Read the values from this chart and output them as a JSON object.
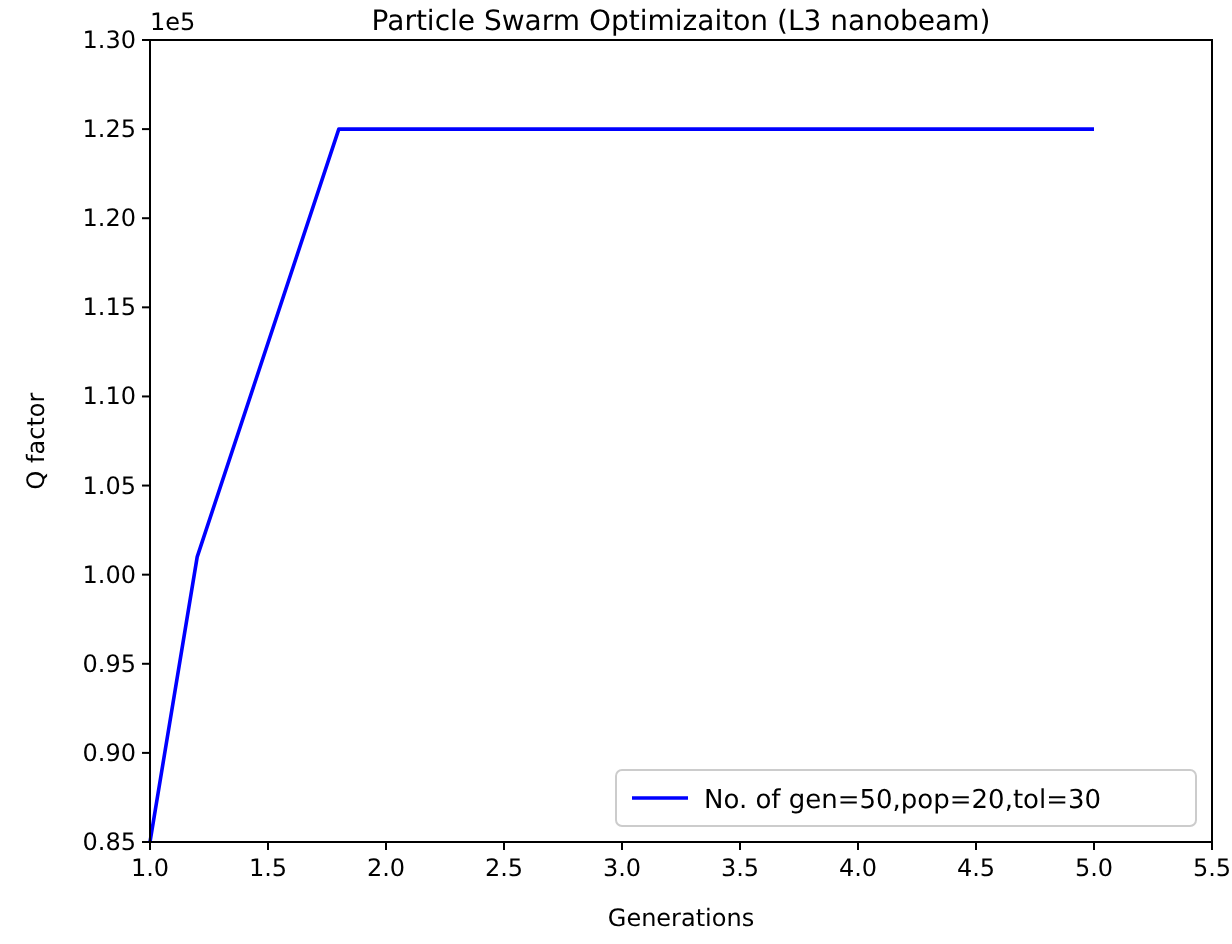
{
  "chart_data": {
    "type": "line",
    "title": "Particle Swarm Optimizaiton (L3 nanobeam)",
    "xlabel": "Generations",
    "ylabel": "Q factor",
    "annotations": [
      "1e5"
    ],
    "x": [
      1.0,
      1.2,
      1.8,
      5.0
    ],
    "series": [
      {
        "name": "No. of gen=50,pop=20,tol=30",
        "color": "#0000ff",
        "values": [
          0.85,
          1.01,
          1.25,
          1.25
        ]
      }
    ],
    "xlim": [
      1.0,
      5.5
    ],
    "xticks": [
      {
        "value": 1.0,
        "label": "1.0"
      },
      {
        "value": 1.5,
        "label": "1.5"
      },
      {
        "value": 2.0,
        "label": "2.0"
      },
      {
        "value": 2.5,
        "label": "2.5"
      },
      {
        "value": 3.0,
        "label": "3.0"
      },
      {
        "value": 3.5,
        "label": "3.5"
      },
      {
        "value": 4.0,
        "label": "4.0"
      },
      {
        "value": 4.5,
        "label": "4.5"
      },
      {
        "value": 5.0,
        "label": "5.0"
      },
      {
        "value": 5.5,
        "label": "5.5"
      }
    ],
    "ylim": [
      0.85,
      1.3
    ],
    "yticks": [
      {
        "value": 0.85,
        "label": "0.85"
      },
      {
        "value": 0.9,
        "label": "0.90"
      },
      {
        "value": 0.95,
        "label": "0.95"
      },
      {
        "value": 1.0,
        "label": "1.00"
      },
      {
        "value": 1.05,
        "label": "1.05"
      },
      {
        "value": 1.1,
        "label": "1.10"
      },
      {
        "value": 1.15,
        "label": "1.15"
      },
      {
        "value": 1.2,
        "label": "1.20"
      },
      {
        "value": 1.25,
        "label": "1.25"
      },
      {
        "value": 1.3,
        "label": "1.30"
      }
    ],
    "legend": "bottom right",
    "grid": false,
    "line_style": "solid",
    "marker": "none"
  }
}
